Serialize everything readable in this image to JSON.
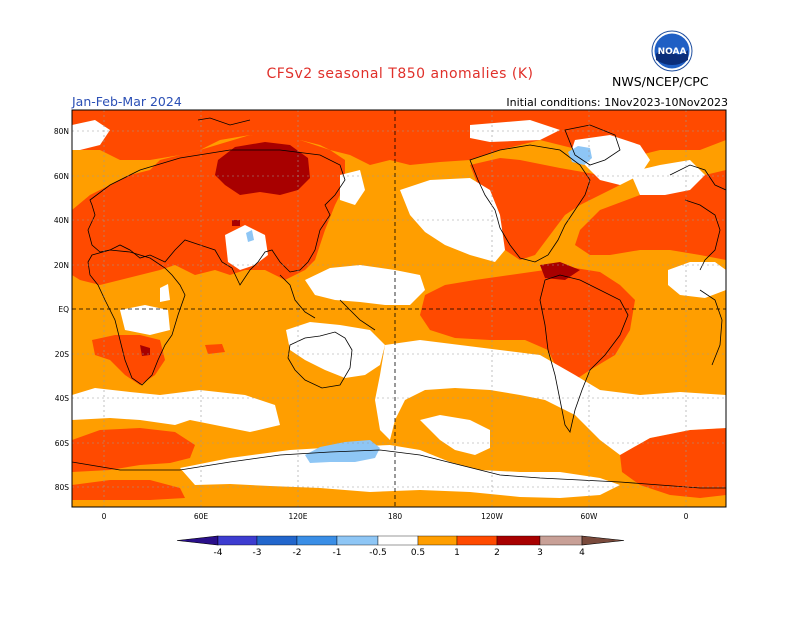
{
  "title": "CFSv2 seasonal T850 anomalies (K)",
  "period": "Jan-Feb-Mar 2024",
  "initial_conditions": "Initial conditions: 1Nov2023-10Nov2023",
  "credit": "NWS/NCEP/CPC",
  "logo_text": "NOAA",
  "lat_labels": [
    "80N",
    "60N",
    "40N",
    "20N",
    "EQ",
    "20S",
    "40S",
    "60S",
    "80S"
  ],
  "lon_labels": [
    "0",
    "60E",
    "120E",
    "180",
    "120W",
    "60W",
    "0"
  ],
  "legend": {
    "ticks": [
      "-4",
      "-3",
      "-2",
      "-1",
      "-0.5",
      "0.5",
      "1",
      "2",
      "3",
      "4"
    ],
    "colors": [
      "#2a0f8a",
      "#3d3cd0",
      "#2266cc",
      "#3a8ee6",
      "#8ec6f5",
      "#ffffff",
      "#ff9e00",
      "#ff4a00",
      "#a80000",
      "#c8a097",
      "#7a4a3c"
    ]
  }
}
